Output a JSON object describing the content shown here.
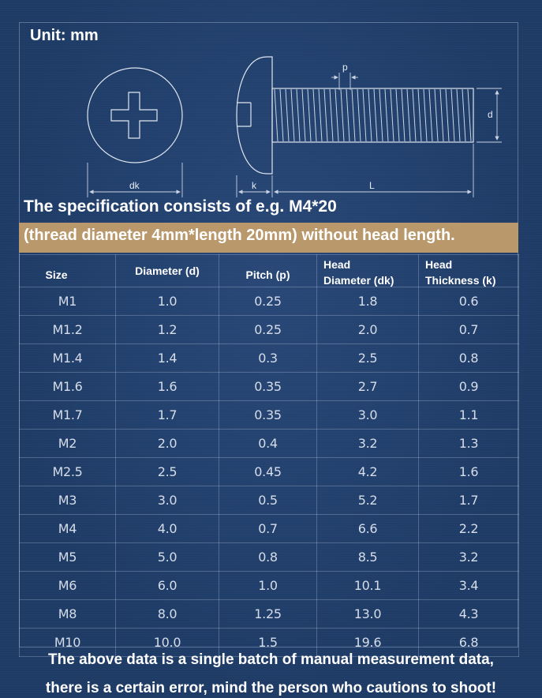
{
  "unit_label": "Unit: mm",
  "diagram_labels": {
    "p": "p",
    "d": "d",
    "dk": "dk",
    "k": "k",
    "L": "L"
  },
  "spec": {
    "line1": "The specification consists of e.g. M4*20",
    "line2": "(thread diameter 4mm*length 20mm)  without head length."
  },
  "table": {
    "headers": {
      "size": "Size",
      "diameter": "Diameter (d)",
      "pitch": "Pitch (p)",
      "head_dia_top": "Head",
      "head_dia_bottom": "Diameter (dk)",
      "head_thk_top": "Head",
      "head_thk_bottom": "Thickness (k)"
    },
    "rows": [
      [
        "M1",
        "1.0",
        "0.25",
        "1.8",
        "0.6"
      ],
      [
        "M1.2",
        "1.2",
        "0.25",
        "2.0",
        "0.7"
      ],
      [
        "M1.4",
        "1.4",
        "0.3",
        "2.5",
        "0.8"
      ],
      [
        "M1.6",
        "1.6",
        "0.35",
        "2.7",
        "0.9"
      ],
      [
        "M1.7",
        "1.7",
        "0.35",
        "3.0",
        "1.1"
      ],
      [
        "M2",
        "2.0",
        "0.4",
        "3.2",
        "1.3"
      ],
      [
        "M2.5",
        "2.5",
        "0.45",
        "4.2",
        "1.6"
      ],
      [
        "M3",
        "3.0",
        "0.5",
        "5.2",
        "1.7"
      ],
      [
        "M4",
        "4.0",
        "0.7",
        "6.6",
        "2.2"
      ],
      [
        "M5",
        "5.0",
        "0.8",
        "8.5",
        "3.2"
      ],
      [
        "M6",
        "6.0",
        "1.0",
        "10.1",
        "3.4"
      ],
      [
        "M8",
        "8.0",
        "1.25",
        "13.0",
        "4.3"
      ],
      [
        "M10",
        "10.0",
        "1.5",
        "19.6",
        "6.8"
      ]
    ]
  },
  "footer": {
    "line1": "The above data is a single batch of manual measurement data,",
    "line2": "there is a certain error, mind the person who cautions to shoot!"
  }
}
